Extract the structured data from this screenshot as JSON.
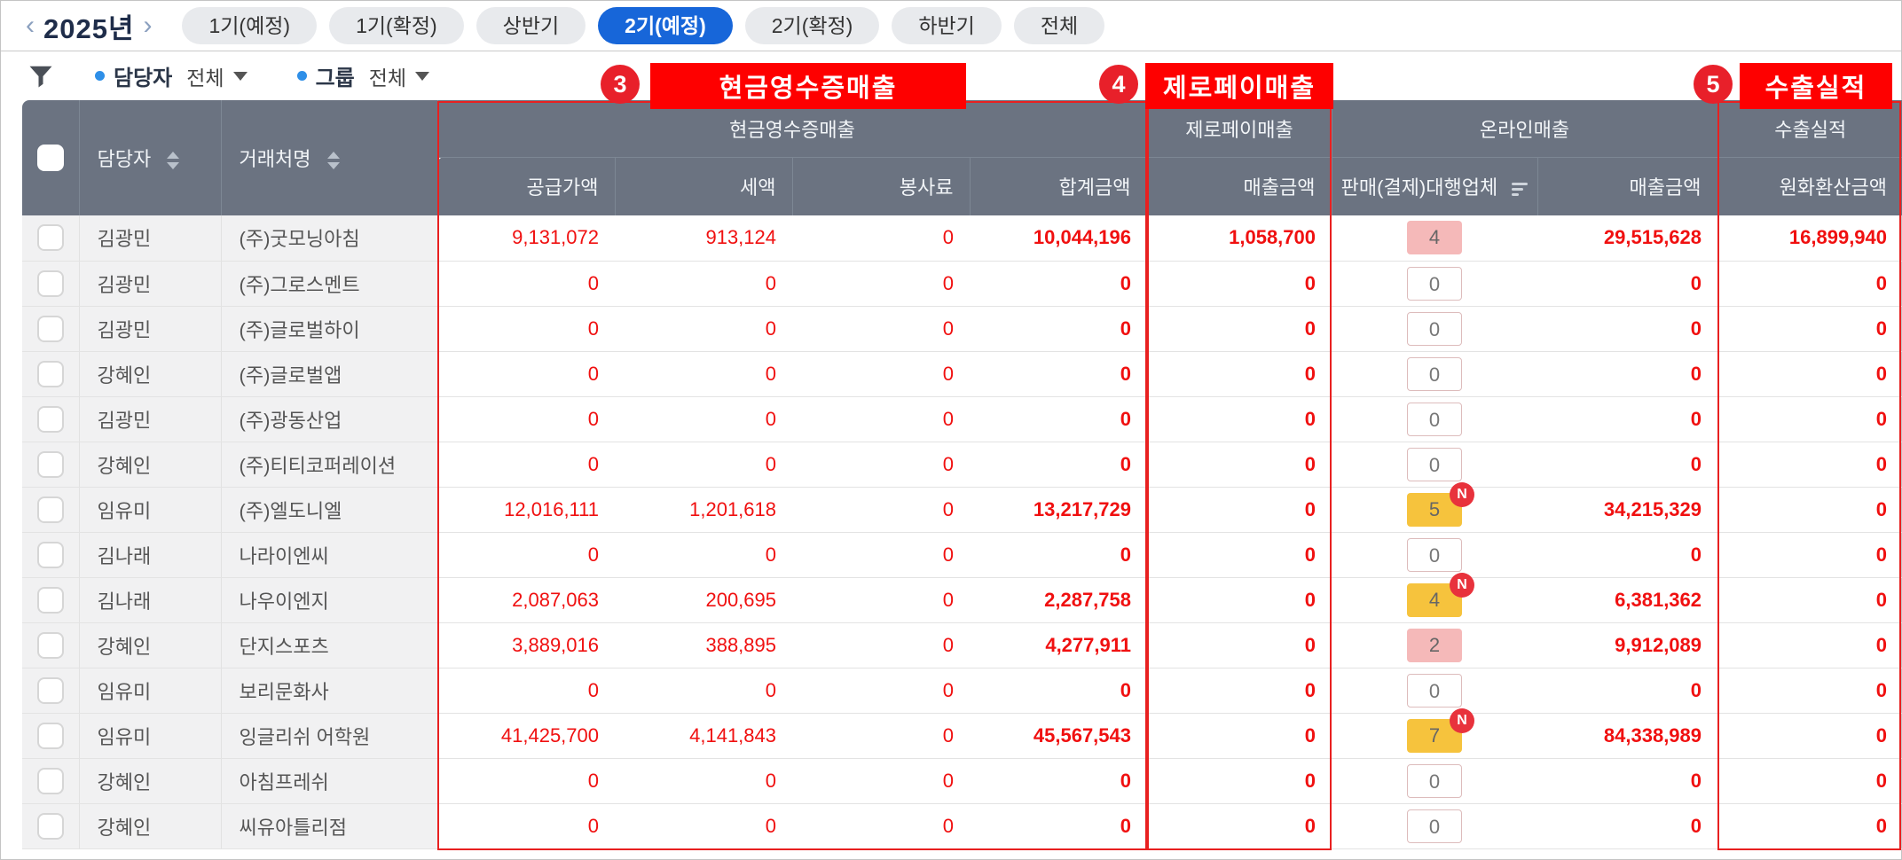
{
  "topbar": {
    "year_label": "2025년",
    "prev_arrow": "‹",
    "next_arrow": "›",
    "tabs": [
      {
        "label": "1기(예정)",
        "active": false
      },
      {
        "label": "1기(확정)",
        "active": false
      },
      {
        "label": "상반기",
        "active": false
      },
      {
        "label": "2기(예정)",
        "active": true
      },
      {
        "label": "2기(확정)",
        "active": false
      },
      {
        "label": "하반기",
        "active": false
      },
      {
        "label": "전체",
        "active": false
      }
    ]
  },
  "filterbar": {
    "staff_label": "담당자",
    "staff_value": "전체",
    "group_label": "그룹",
    "group_value": "전체"
  },
  "annotations": [
    {
      "number": "3",
      "label": "현금영수증매출"
    },
    {
      "number": "4",
      "label": "제로페이매출"
    },
    {
      "number": "5",
      "label": "수출실적"
    }
  ],
  "table": {
    "column_headers": {
      "staff": "담당자",
      "client": "거래처명"
    },
    "group_headers": {
      "cash_receipt": "현금영수증매출",
      "zeropay": "제로페이매출",
      "online": "온라인매출",
      "export": "수출실적"
    },
    "sub_headers": {
      "supply": "공급가액",
      "tax": "세액",
      "service": "봉사료",
      "total": "합계금액",
      "zeropay_sales": "매출금액",
      "agency": "판매(결제)대행업체",
      "online_sales": "매출금액",
      "export_krw": "원화환산금액"
    },
    "rows": [
      {
        "staff": "김광민",
        "client": "(주)굿모닝아침",
        "supply": "9,131,072",
        "tax": "913,124",
        "service": "0",
        "total": "10,044,196",
        "zeropay": "1,058,700",
        "agency_count": "4",
        "agency_badge": "pink",
        "is_new": false,
        "online": "29,515,628",
        "export_krw": "16,899,940"
      },
      {
        "staff": "김광민",
        "client": "(주)그로스멘트",
        "supply": "0",
        "tax": "0",
        "service": "0",
        "total": "0",
        "zeropay": "0",
        "agency_count": "0",
        "agency_badge": "zero",
        "is_new": false,
        "online": "0",
        "export_krw": "0"
      },
      {
        "staff": "김광민",
        "client": "(주)글로벌하이",
        "supply": "0",
        "tax": "0",
        "service": "0",
        "total": "0",
        "zeropay": "0",
        "agency_count": "0",
        "agency_badge": "zero",
        "is_new": false,
        "online": "0",
        "export_krw": "0"
      },
      {
        "staff": "강혜인",
        "client": "(주)글로벌앱",
        "supply": "0",
        "tax": "0",
        "service": "0",
        "total": "0",
        "zeropay": "0",
        "agency_count": "0",
        "agency_badge": "zero",
        "is_new": false,
        "online": "0",
        "export_krw": "0"
      },
      {
        "staff": "김광민",
        "client": "(주)광동산업",
        "supply": "0",
        "tax": "0",
        "service": "0",
        "total": "0",
        "zeropay": "0",
        "agency_count": "0",
        "agency_badge": "zero",
        "is_new": false,
        "online": "0",
        "export_krw": "0"
      },
      {
        "staff": "강혜인",
        "client": "(주)티티코퍼레이션",
        "supply": "0",
        "tax": "0",
        "service": "0",
        "total": "0",
        "zeropay": "0",
        "agency_count": "0",
        "agency_badge": "zero",
        "is_new": false,
        "online": "0",
        "export_krw": "0"
      },
      {
        "staff": "임유미",
        "client": "(주)엘도니엘",
        "supply": "12,016,111",
        "tax": "1,201,618",
        "service": "0",
        "total": "13,217,729",
        "zeropay": "0",
        "agency_count": "5",
        "agency_badge": "yellow",
        "is_new": true,
        "online": "34,215,329",
        "export_krw": "0"
      },
      {
        "staff": "김나래",
        "client": "나라이엔씨",
        "supply": "0",
        "tax": "0",
        "service": "0",
        "total": "0",
        "zeropay": "0",
        "agency_count": "0",
        "agency_badge": "zero",
        "is_new": false,
        "online": "0",
        "export_krw": "0"
      },
      {
        "staff": "김나래",
        "client": "나우이엔지",
        "supply": "2,087,063",
        "tax": "200,695",
        "service": "0",
        "total": "2,287,758",
        "zeropay": "0",
        "agency_count": "4",
        "agency_badge": "yellow",
        "is_new": true,
        "online": "6,381,362",
        "export_krw": "0"
      },
      {
        "staff": "강혜인",
        "client": "단지스포츠",
        "supply": "3,889,016",
        "tax": "388,895",
        "service": "0",
        "total": "4,277,911",
        "zeropay": "0",
        "agency_count": "2",
        "agency_badge": "pink",
        "is_new": false,
        "online": "9,912,089",
        "export_krw": "0"
      },
      {
        "staff": "임유미",
        "client": "보리문화사",
        "supply": "0",
        "tax": "0",
        "service": "0",
        "total": "0",
        "zeropay": "0",
        "agency_count": "0",
        "agency_badge": "zero",
        "is_new": false,
        "online": "0",
        "export_krw": "0"
      },
      {
        "staff": "임유미",
        "client": "잉글리쉬 어학원",
        "supply": "41,425,700",
        "tax": "4,141,843",
        "service": "0",
        "total": "45,567,543",
        "zeropay": "0",
        "agency_count": "7",
        "agency_badge": "yellow",
        "is_new": true,
        "online": "84,338,989",
        "export_krw": "0"
      },
      {
        "staff": "강혜인",
        "client": "아침프레쉬",
        "supply": "0",
        "tax": "0",
        "service": "0",
        "total": "0",
        "zeropay": "0",
        "agency_count": "0",
        "agency_badge": "zero",
        "is_new": false,
        "online": "0",
        "export_krw": "0"
      },
      {
        "staff": "강혜인",
        "client": "씨유아틀리점",
        "supply": "0",
        "tax": "0",
        "service": "0",
        "total": "0",
        "zeropay": "0",
        "agency_count": "0",
        "agency_badge": "zero",
        "is_new": false,
        "online": "0",
        "export_krw": "0"
      }
    ],
    "new_indicator": "N"
  },
  "colors": {
    "accent_blue": "#1766d9",
    "header_bg": "#6b7381",
    "number_red": "#f01010",
    "annotation_red": "#fe0000",
    "badge_pink": "#f5b9b9",
    "badge_yellow": "#f6c33d",
    "new_badge_red": "#e8323c"
  }
}
